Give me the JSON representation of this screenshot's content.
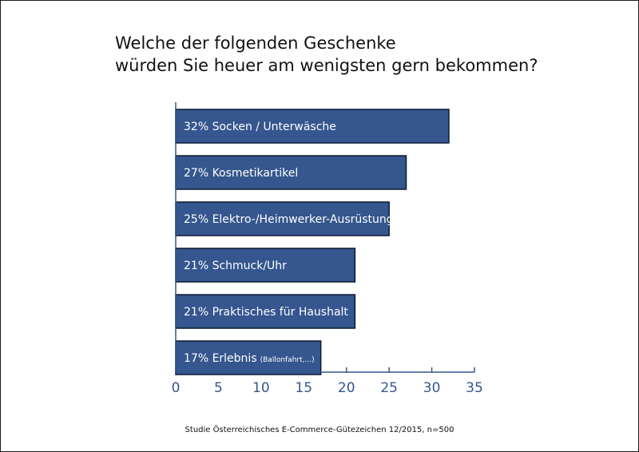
{
  "chart_data": {
    "type": "bar",
    "orientation": "horizontal",
    "title": [
      "Welche der folgenden Geschenke",
      "würden Sie heuer am wenigsten gern bekommen?"
    ],
    "categories": [
      {
        "label": "32% Socken / Unterwäsche",
        "note": ""
      },
      {
        "label": "27% Kosmetikartikel",
        "note": ""
      },
      {
        "label": "25% Elektro-/Heimwerker-Ausrüstung",
        "note": ""
      },
      {
        "label": "21% Schmuck/Uhr",
        "note": ""
      },
      {
        "label": "21% Praktisches für Haushalt",
        "note": ""
      },
      {
        "label": "17% Erlebnis",
        "note": "(Ballonfahrt,...)"
      }
    ],
    "values": [
      32,
      27,
      25,
      21,
      21,
      17
    ],
    "xlim": [
      0,
      35
    ],
    "xticks": [
      "0",
      "5",
      "10",
      "15",
      "20",
      "25",
      "30",
      "35"
    ],
    "bar_color": "#35568e",
    "axis_color": "#35568e",
    "source": "Studie Österreichisches E-Commerce-Gütezeichen 12/2015, n=500"
  }
}
